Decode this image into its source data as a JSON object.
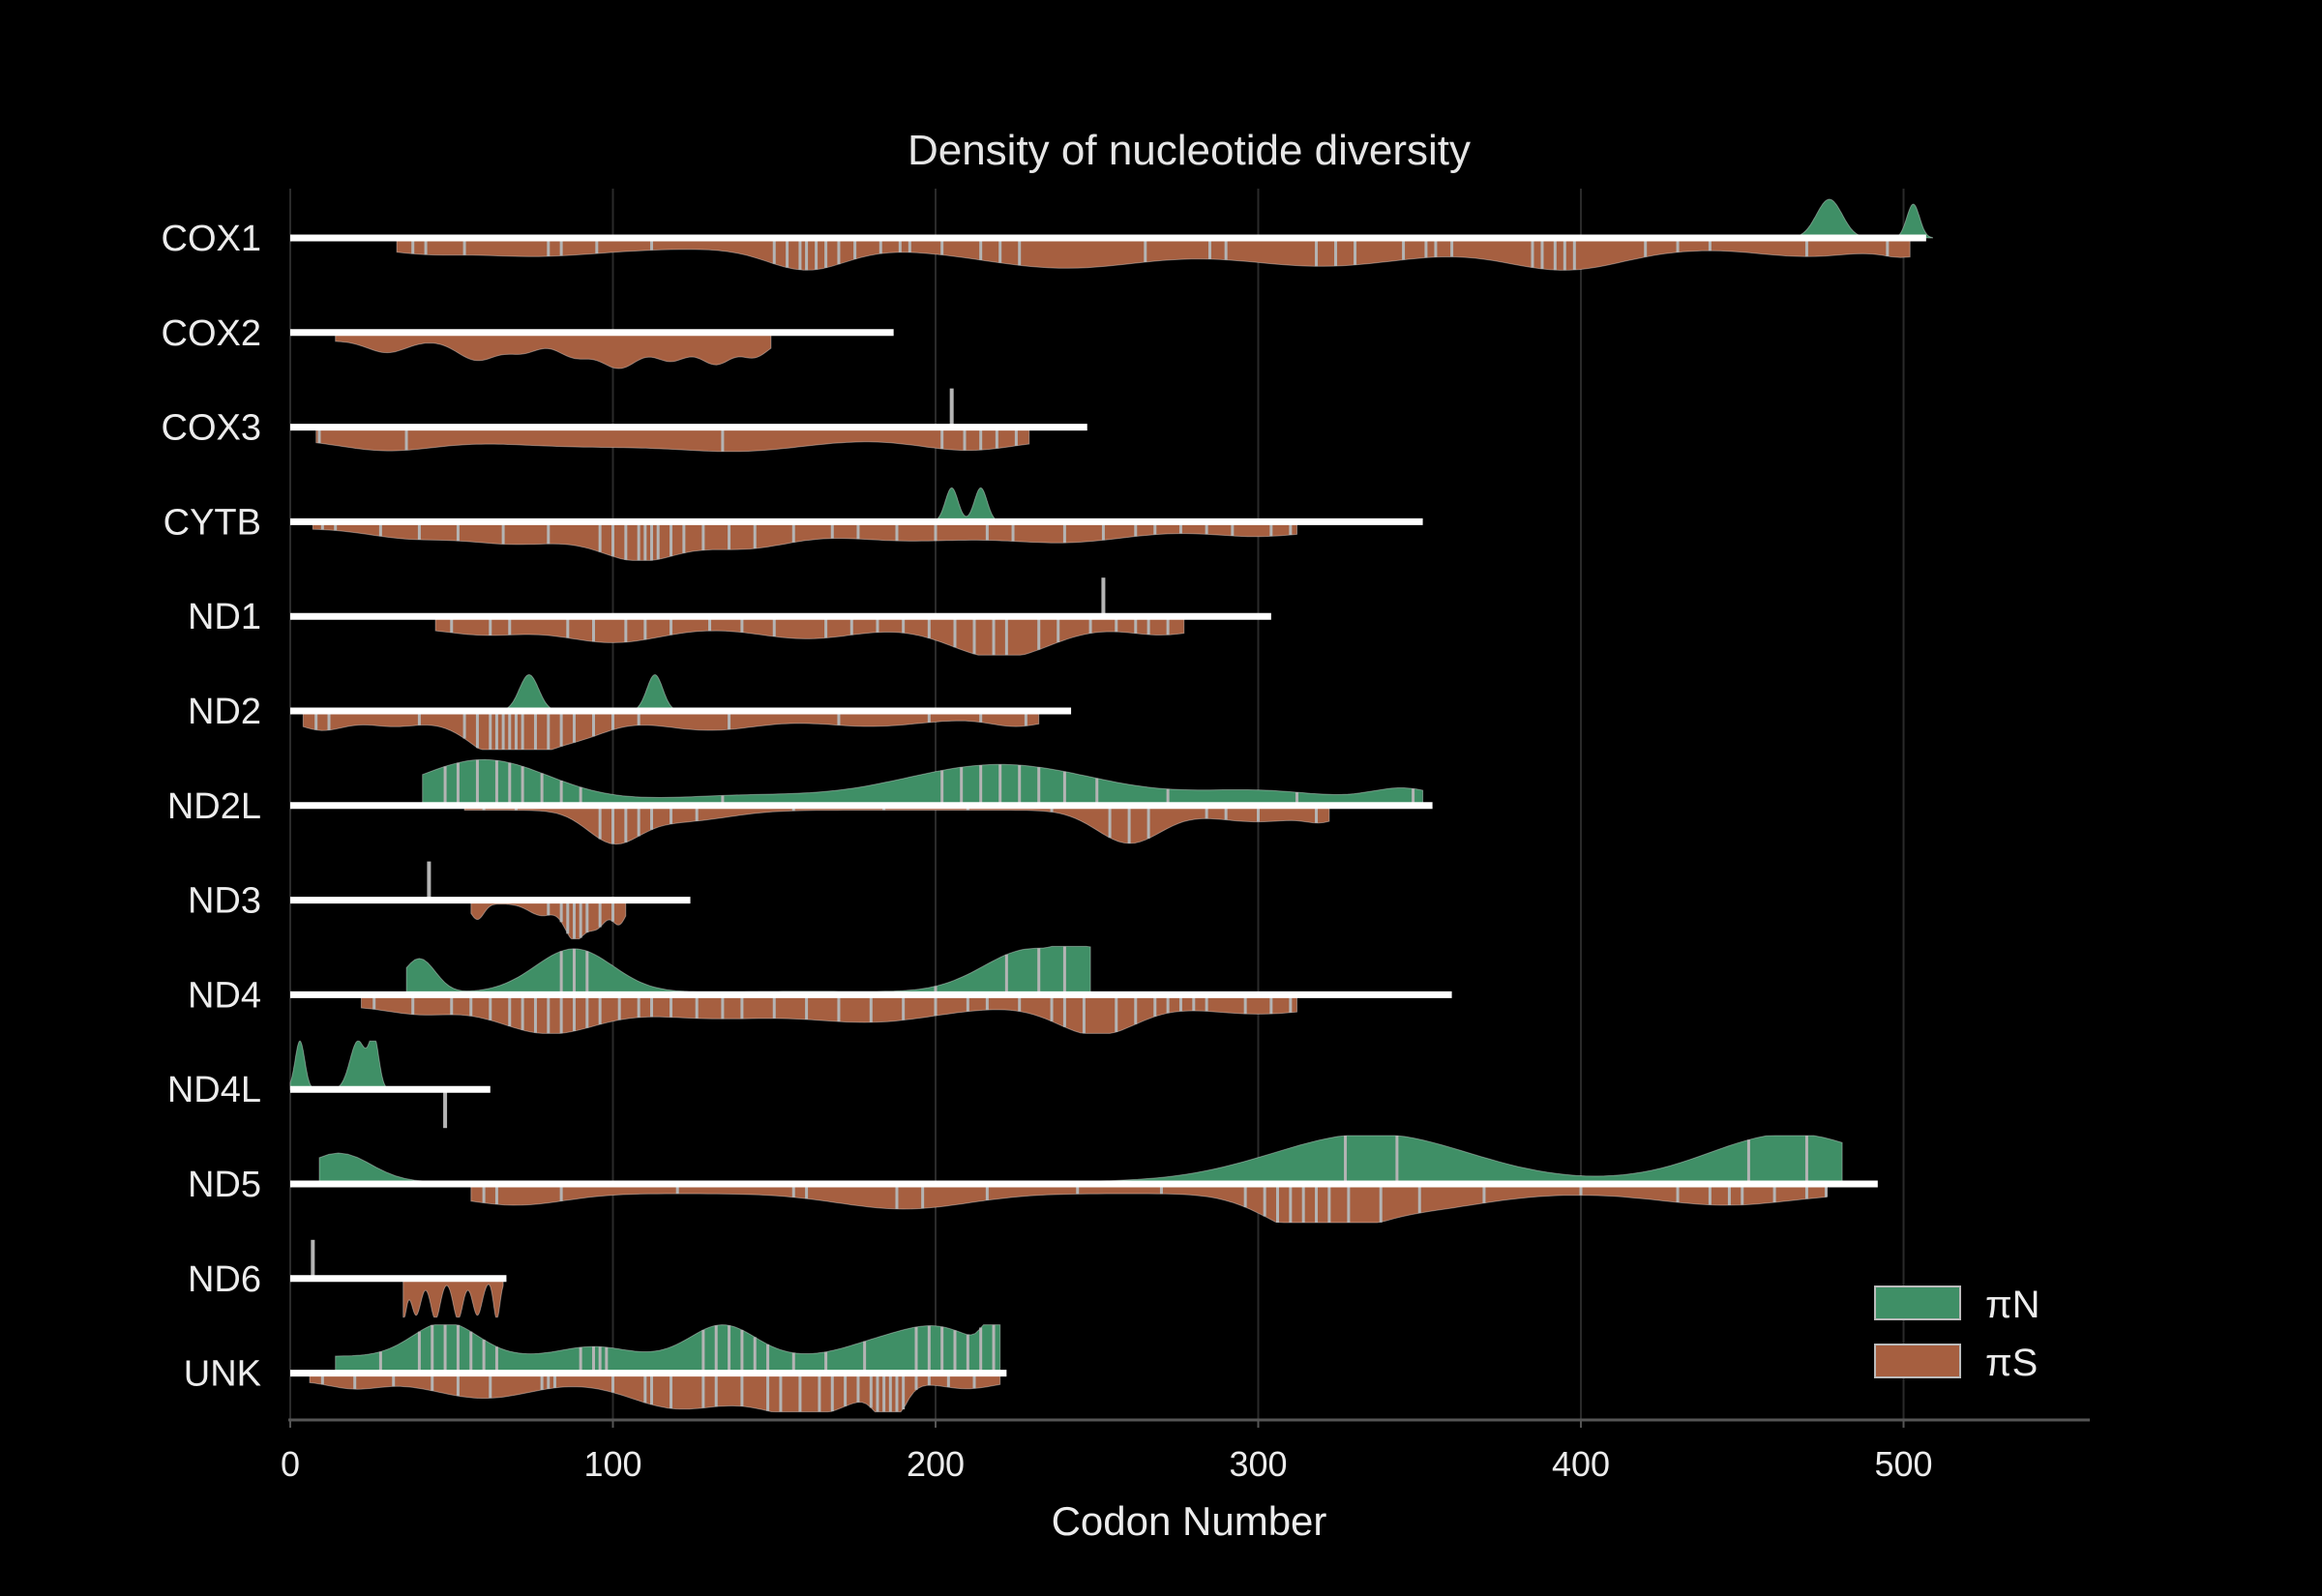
{
  "chart_data": {
    "type": "ridgeline-density",
    "title": "Density of nucleotide diversity",
    "xlabel": "Codon Number",
    "ylabel": "",
    "xlim": [
      0,
      558
    ],
    "xticks": [
      0,
      100,
      200,
      300,
      400,
      500
    ],
    "grid": "vertical",
    "legend_position": "bottom-right",
    "colors": {
      "piN": "#3f8f66",
      "piS": "#a65f40",
      "gene_line": "#ffffff",
      "site_tick": "#b4b4b4",
      "grid": "#2a2a2a"
    },
    "series": [
      {
        "name": "πN",
        "key": "piN"
      },
      {
        "name": "πS",
        "key": "piS"
      }
    ],
    "genes": [
      {
        "name": "COX1",
        "length": 507,
        "piN": {
          "peaks": [
            [
              477,
              4,
              0.8
            ],
            [
              503,
              2,
              0.7
            ]
          ],
          "sites": []
        },
        "piS": {
          "start": 33,
          "end": 502,
          "base": 0.28,
          "peaks": [
            [
              42,
              10,
              0.1
            ],
            [
              75,
              20,
              0.2
            ],
            [
              160,
              12,
              0.55
            ],
            [
              240,
              25,
              0.5
            ],
            [
              320,
              25,
              0.45
            ],
            [
              395,
              18,
              0.55
            ],
            [
              470,
              15,
              0.2
            ],
            [
              500,
              6,
              0.2
            ]
          ],
          "sites": [
            38,
            42,
            54,
            80,
            84,
            95,
            112,
            150,
            154,
            158,
            160,
            163,
            166,
            170,
            175,
            183,
            189,
            192,
            202,
            214,
            220,
            226,
            265,
            285,
            290,
            318,
            324,
            330,
            345,
            352,
            355,
            360,
            385,
            388,
            392,
            395,
            398,
            420,
            430,
            440,
            470,
            495
          ]
        }
      },
      {
        "name": "COX2",
        "length": 187,
        "piN": {
          "peaks": [],
          "sites": []
        },
        "piS": {
          "start": 14,
          "end": 149,
          "base": 0.22,
          "peaks": [
            [
              30,
              6,
              0.3
            ],
            [
              58,
              6,
              0.5
            ],
            [
              72,
              5,
              0.3
            ],
            [
              88,
              5,
              0.4
            ],
            [
              102,
              6,
              0.7
            ],
            [
              118,
              5,
              0.5
            ],
            [
              132,
              5,
              0.6
            ],
            [
              144,
              4,
              0.4
            ]
          ],
          "sites": []
        }
      },
      {
        "name": "COX3",
        "length": 247,
        "piN": {
          "peaks": [],
          "sites": [
            205
          ]
        },
        "piS": {
          "start": 8,
          "end": 229,
          "base": 0.3,
          "peaks": [
            [
              30,
              15,
              0.3
            ],
            [
              90,
              25,
              0.2
            ],
            [
              140,
              20,
              0.3
            ],
            [
              210,
              15,
              0.3
            ]
          ],
          "sites": [
            9,
            36,
            134,
            202,
            209,
            214,
            219,
            225
          ]
        }
      },
      {
        "name": "CYTB",
        "length": 351,
        "piN": {
          "peaks": [
            [
              205,
              2,
              0.7
            ],
            [
              214,
              2,
              0.7
            ]
          ],
          "sites": []
        },
        "piS": {
          "start": 7,
          "end": 312,
          "base": 0.18,
          "peaks": [
            [
              35,
              12,
              0.2
            ],
            [
              70,
              18,
              0.4
            ],
            [
              108,
              12,
              0.75
            ],
            [
              140,
              15,
              0.5
            ],
            [
              190,
              20,
              0.3
            ],
            [
              240,
              20,
              0.35
            ],
            [
              300,
              15,
              0.2
            ]
          ],
          "sites": [
            10,
            14,
            28,
            40,
            52,
            66,
            80,
            96,
            100,
            104,
            108,
            110,
            112,
            114,
            118,
            122,
            128,
            136,
            144,
            156,
            168,
            176,
            188,
            200,
            216,
            224,
            240,
            252,
            262,
            268,
            276,
            284,
            292,
            304,
            310
          ]
        }
      },
      {
        "name": "ND1",
        "length": 304,
        "piN": {
          "peaks": [],
          "sites": [
            252
          ]
        },
        "piS": {
          "start": 45,
          "end": 277,
          "base": 0.28,
          "peaks": [
            [
              60,
              12,
              0.2
            ],
            [
              100,
              15,
              0.4
            ],
            [
              160,
              15,
              0.3
            ],
            [
              220,
              15,
              0.8
            ],
            [
              270,
              10,
              0.2
            ]
          ],
          "sites": [
            50,
            62,
            68,
            86,
            94,
            104,
            110,
            118,
            130,
            140,
            150,
            166,
            174,
            182,
            190,
            198,
            206,
            212,
            218,
            222,
            232,
            238,
            248,
            256,
            262,
            266,
            272
          ]
        }
      },
      {
        "name": "ND2",
        "length": 242,
        "piN": {
          "peaks": [
            [
              74,
              3,
              0.75
            ],
            [
              113,
              2.5,
              0.75
            ]
          ],
          "sites": []
        },
        "piS": {
          "start": 4,
          "end": 232,
          "base": 0.2,
          "peaks": [
            [
              10,
              7,
              0.3
            ],
            [
              32,
              8,
              0.2
            ],
            [
              62,
              10,
              0.5
            ],
            [
              70,
              9,
              0.7
            ],
            [
              88,
              10,
              0.5
            ],
            [
              130,
              15,
              0.3
            ],
            [
              180,
              15,
              0.2
            ],
            [
              225,
              8,
              0.2
            ]
          ],
          "sites": [
            8,
            12,
            40,
            54,
            58,
            62,
            64,
            66,
            68,
            70,
            72,
            76,
            80,
            84,
            88,
            94,
            100,
            108,
            136,
            170,
            198,
            214,
            228
          ]
        }
      },
      {
        "name": "ND2L",
        "length": 354,
        "piN": {
          "start": 41,
          "end": 351,
          "base": 0.1,
          "peaks": [
            [
              60,
              20,
              0.85
            ],
            [
              140,
              20,
              0.1
            ],
            [
              220,
              30,
              0.75
            ],
            [
              300,
              20,
              0.2
            ],
            [
              345,
              10,
              0.25
            ]
          ],
          "sites": [
            48,
            52,
            58,
            64,
            68,
            72,
            78,
            84,
            90,
            134,
            202,
            208,
            214,
            220,
            226,
            232,
            240,
            250,
            272,
            312,
            348
          ]
        },
        "piS": {
          "start": 54,
          "end": 322,
          "base": 0.12,
          "peaks": [
            [
              100,
              8,
              0.75
            ],
            [
              120,
              15,
              0.3
            ],
            [
              260,
              10,
              0.85
            ],
            [
              300,
              15,
              0.3
            ],
            [
              320,
              5,
              0.2
            ]
          ],
          "sites": [
            60,
            70,
            96,
            100,
            104,
            108,
            112,
            118,
            126,
            156,
            184,
            210,
            236,
            254,
            260,
            266,
            284,
            290,
            300,
            318
          ]
        }
      },
      {
        "name": "ND3",
        "length": 124,
        "piN": {
          "peaks": [],
          "sites": [
            43
          ]
        },
        "piS": {
          "start": 56,
          "end": 104,
          "base": 0.1,
          "peaks": [
            [
              58,
              2,
              0.4
            ],
            [
              78,
              4,
              0.3
            ],
            [
              88,
              3,
              0.9
            ],
            [
              95,
              3,
              0.6
            ],
            [
              102,
              2,
              0.5
            ]
          ],
          "sites": [
            80,
            84,
            86,
            88,
            90,
            92,
            96,
            100
          ]
        }
      },
      {
        "name": "ND4",
        "length": 360,
        "piN": {
          "start": 36,
          "end": 248,
          "base": 0.05,
          "peaks": [
            [
              40,
              5,
              0.7
            ],
            [
              88,
              12,
              0.9
            ],
            [
              160,
              25,
              0.02
            ],
            [
              230,
              15,
              0.9
            ],
            [
              245,
              5,
              0.6
            ]
          ],
          "sites": [
            84,
            88,
            92,
            200,
            222,
            232,
            240
          ]
        },
        "piS": {
          "start": 22,
          "end": 312,
          "base": 0.3,
          "peaks": [
            [
              40,
              10,
              0.2
            ],
            [
              80,
              15,
              0.7
            ],
            [
              130,
              20,
              0.3
            ],
            [
              180,
              20,
              0.4
            ],
            [
              250,
              12,
              0.75
            ],
            [
              300,
              15,
              0.2
            ]
          ],
          "sites": [
            26,
            38,
            50,
            56,
            62,
            68,
            72,
            76,
            80,
            84,
            88,
            92,
            96,
            102,
            108,
            112,
            118,
            126,
            134,
            140,
            150,
            160,
            170,
            180,
            190,
            200,
            210,
            216,
            226,
            236,
            240,
            246,
            256,
            262,
            268,
            272,
            276,
            280,
            284,
            296,
            304,
            310
          ]
        }
      },
      {
        "name": "ND4L",
        "length": 62,
        "piN": {
          "peaks": [
            [
              3,
              1.5,
              1.0
            ],
            [
              21,
              2.5,
              1.0
            ],
            [
              26,
              1.5,
              1.0
            ]
          ],
          "sites": []
        },
        "piS": {
          "peaks": [],
          "sites": [
            48
          ]
        }
      },
      {
        "name": "ND5",
        "length": 492,
        "piN": {
          "start": 9,
          "end": 481,
          "base": 0.04,
          "peaks": [
            [
              15,
              10,
              0.6
            ],
            [
              335,
              30,
              1.0
            ],
            [
              465,
              25,
              1.0
            ]
          ],
          "sites": [
            327,
            343,
            452,
            470
          ]
        },
        "piS": {
          "start": 56,
          "end": 476,
          "base": 0.25,
          "peaks": [
            [
              70,
              15,
              0.3
            ],
            [
              190,
              20,
              0.4
            ],
            [
              318,
              15,
              1.0
            ],
            [
              350,
              20,
              0.4
            ],
            [
              445,
              20,
              0.3
            ]
          ],
          "sites": [
            60,
            64,
            84,
            120,
            156,
            160,
            188,
            196,
            216,
            244,
            270,
            296,
            302,
            306,
            310,
            314,
            318,
            322,
            328,
            338,
            350,
            370,
            400,
            430,
            440,
            446,
            450,
            460,
            470,
            476
          ]
        }
      },
      {
        "name": "ND6",
        "length": 67,
        "piN": {
          "peaks": [],
          "sites": [
            7
          ]
        },
        "piS": {
          "start": 35,
          "end": 66,
          "base": 0.05,
          "peaks": [
            [
              35,
              1,
              1.0
            ],
            [
              39,
              1.5,
              0.9
            ],
            [
              45,
              1.5,
              1.0
            ],
            [
              52,
              1.5,
              1.0
            ],
            [
              58,
              1.5,
              0.9
            ],
            [
              64,
              1,
              1.0
            ]
          ],
          "sites": []
        }
      },
      {
        "name": "UNK",
        "length": 222,
        "piN": {
          "start": 14,
          "end": 220,
          "base": 0.35,
          "peaks": [
            [
              48,
              10,
              0.7
            ],
            [
              94,
              10,
              0.2
            ],
            [
              134,
              10,
              0.65
            ],
            [
              180,
              10,
              0.2
            ],
            [
              200,
              12,
              0.6
            ],
            [
              218,
              3,
              0.7
            ]
          ],
          "sites": [
            28,
            40,
            44,
            48,
            52,
            56,
            60,
            64,
            90,
            94,
            96,
            98,
            128,
            132,
            136,
            140,
            144,
            148,
            156,
            166,
            178,
            194,
            198,
            202,
            206,
            210,
            214,
            218
          ]
        },
        "piS": {
          "start": 6,
          "end": 220,
          "base": 0.2,
          "peaks": [
            [
              20,
              8,
              0.2
            ],
            [
              60,
              15,
              0.45
            ],
            [
              120,
              15,
              0.7
            ],
            [
              160,
              15,
              0.9
            ],
            [
              186,
              4,
              1.0
            ],
            [
              210,
              8,
              0.2
            ]
          ],
          "sites": [
            10,
            20,
            32,
            44,
            52,
            62,
            78,
            80,
            82,
            100,
            110,
            112,
            118,
            128,
            132,
            140,
            148,
            152,
            158,
            164,
            168,
            172,
            176,
            180,
            182,
            184,
            186,
            188,
            190,
            194,
            198,
            204,
            212
          ]
        }
      }
    ]
  }
}
